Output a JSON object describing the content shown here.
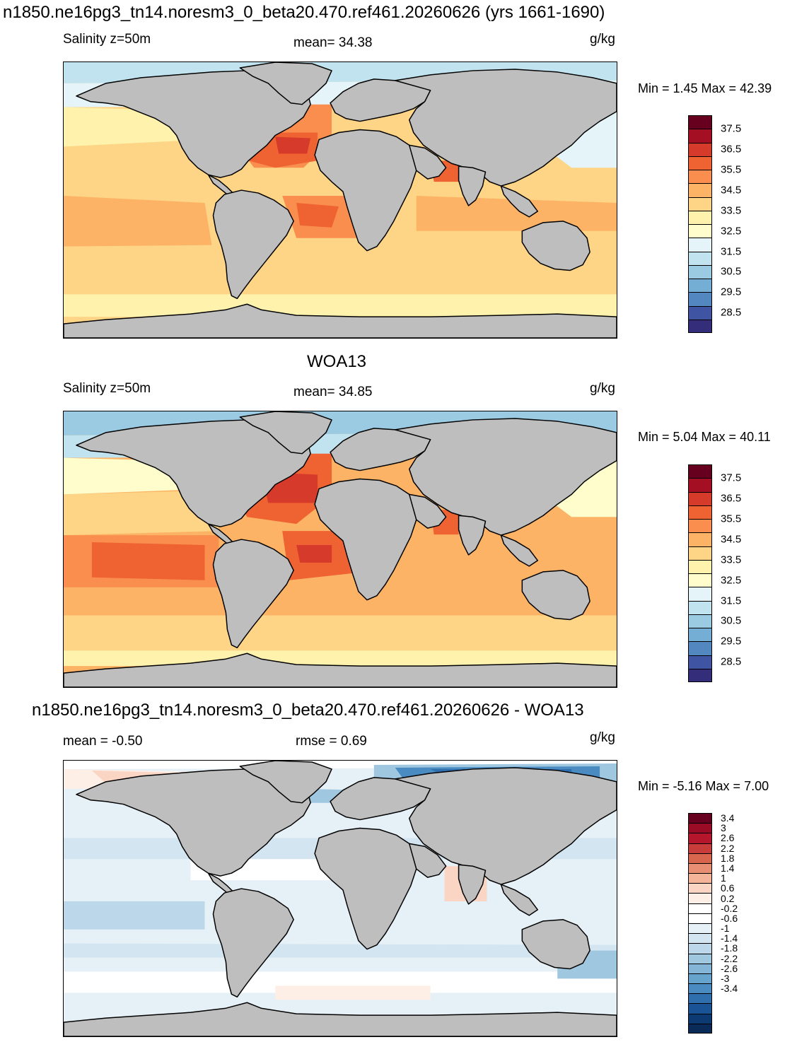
{
  "page": {
    "title_top": "n1850.ne16pg3_tn14.noresm3_0_beta20.470.ref461.20260626 (yrs 1661-1690)"
  },
  "panels": [
    {
      "id": "model",
      "title": "",
      "left_label": "Salinity z=50m",
      "center_label": "mean=  34.38",
      "unit": "g/kg",
      "minmax": "Min =   1.45 Max =  42.39",
      "palette": "salinity"
    },
    {
      "id": "obs",
      "title": "WOA13",
      "left_label": "Salinity z=50m",
      "center_label": "mean=  34.85",
      "unit": "g/kg",
      "minmax": "Min =   5.04 Max =  40.11",
      "palette": "salinity"
    },
    {
      "id": "diff",
      "title": "n1850.ne16pg3_tn14.noresm3_0_beta20.470.ref461.20260626 - WOA13",
      "left_label": "mean =  -0.50",
      "center_label": "rmse =   0.69",
      "unit": "g/kg",
      "minmax": "Min =  -5.16 Max =   7.00",
      "palette": "diff"
    }
  ],
  "colorbars": {
    "salinity": {
      "colors": [
        "#67001f",
        "#a50f24",
        "#d63a2b",
        "#ef6232",
        "#f98e4e",
        "#fdb365",
        "#fed486",
        "#fff2ac",
        "#fefdcb",
        "#e4f4f8",
        "#c1e3ef",
        "#9acbe2",
        "#74aed4",
        "#5387c0",
        "#3f55a4",
        "#332d7a"
      ],
      "labels": [
        "37.5",
        "36.5",
        "35.5",
        "34.5",
        "33.5",
        "32.5",
        "31.5",
        "30.5",
        "29.5",
        "28.5"
      ]
    },
    "diff": {
      "colors": [
        "#67001f",
        "#9a0b25",
        "#b5162b",
        "#c83c3c",
        "#d8664f",
        "#e88e72",
        "#f4b49a",
        "#fad5c4",
        "#fdeee6",
        "#ffffff",
        "#ffffff",
        "#e6f0f7",
        "#d2e5f0",
        "#bbd7e9",
        "#9fc7e0",
        "#84b5d7",
        "#66a3cd",
        "#4a8cc1",
        "#2f6fae",
        "#1b5496",
        "#0d3a72",
        "#0a2a58"
      ],
      "labels": [
        "3.4",
        "3",
        "2.6",
        "2.2",
        "1.8",
        "1.4",
        "1",
        "0.6",
        "0.2",
        "-0.2",
        "-0.6",
        "-1",
        "-1.4",
        "-1.8",
        "-2.2",
        "-2.6",
        "-3",
        "-3.4"
      ]
    }
  },
  "map_palette": {
    "land": "#bebebe",
    "coast": "#000000"
  }
}
